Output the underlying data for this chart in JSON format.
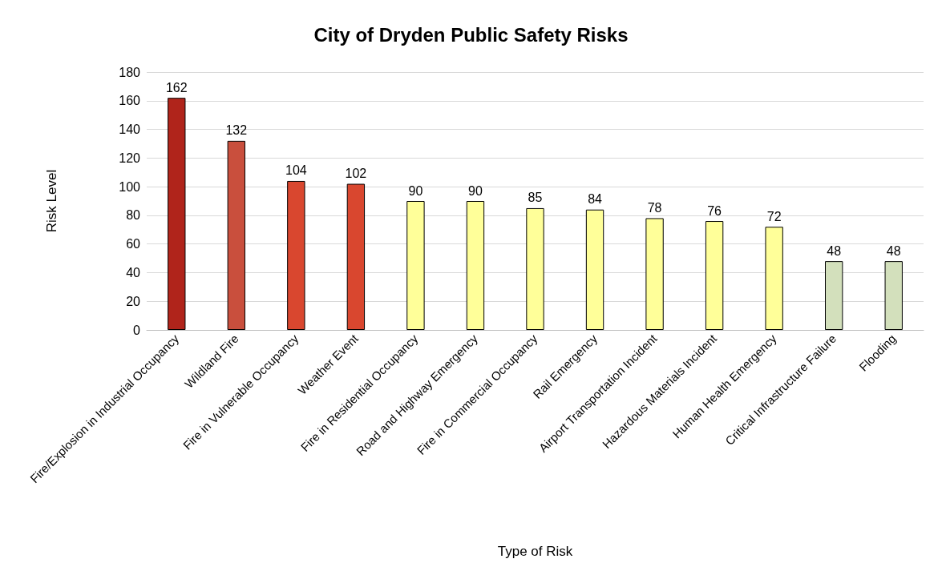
{
  "chart_data": {
    "type": "bar",
    "title": "City of Dryden Public Safety Risks",
    "xlabel": "Type of Risk",
    "ylabel": "Risk Level",
    "categories": [
      "Fire/Explosion in Industrial Occupancy",
      "Wildland Fire",
      "Fire in Vulnerable Occupancy",
      "Weather Event",
      "Fire in Residential Occupancy",
      "Road and Highway Emergency",
      "Fire in Commercial Occupancy",
      "Rail Emergency",
      "Airport Transportation Incident",
      "Hazardous Materials Incident",
      "Human Health Emergency",
      "Critical Infrastructure Failure",
      "Flooding"
    ],
    "values": [
      162,
      132,
      104,
      102,
      90,
      90,
      85,
      84,
      78,
      76,
      72,
      48,
      48
    ],
    "colors": [
      "#b0241b",
      "#c94f3d",
      "#d9472f",
      "#d9472f",
      "#ffff99",
      "#ffff99",
      "#ffff99",
      "#ffff99",
      "#ffff99",
      "#ffff99",
      "#ffff99",
      "#d3e0bc",
      "#d3e0bc"
    ],
    "ylim": [
      0,
      180
    ],
    "yticks": [
      0,
      20,
      40,
      60,
      80,
      100,
      120,
      140,
      160,
      180
    ],
    "grid": "y",
    "data_labels": true
  }
}
